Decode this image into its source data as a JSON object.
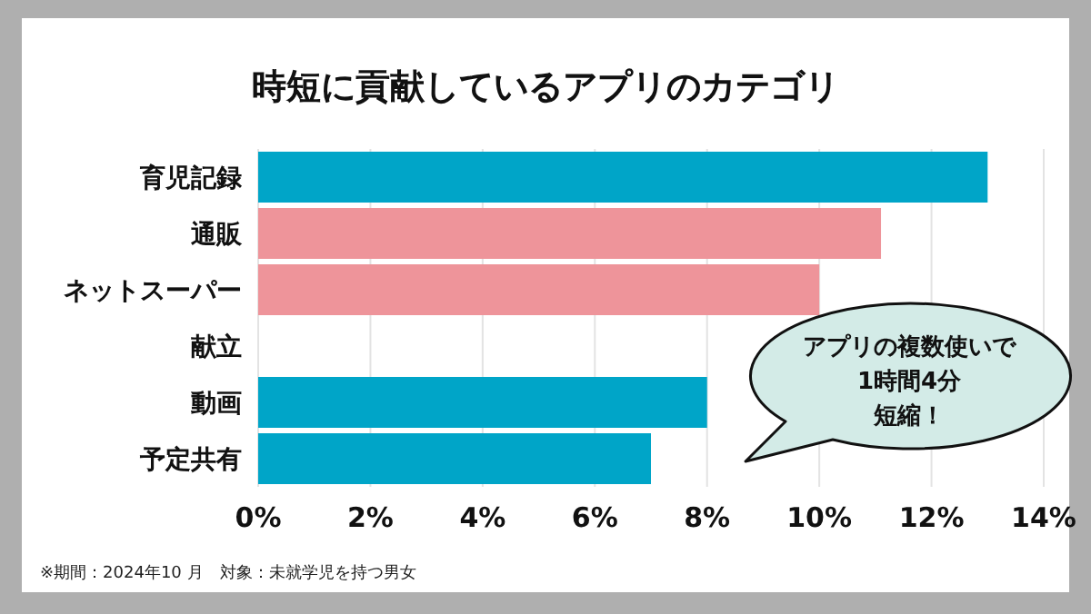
{
  "chart_data": {
    "type": "bar",
    "orientation": "horizontal",
    "title": "時短に貢献しているアプリのカテゴリ",
    "categories": [
      "育児記録",
      "通販",
      "ネットスーパー",
      "献立",
      "動画",
      "予定共有"
    ],
    "values": [
      13,
      11.1,
      10,
      null,
      8,
      7
    ],
    "colors": [
      "#00a5c8",
      "#ee949a",
      "#ee949a",
      null,
      "#00a5c8",
      "#00a5c8"
    ],
    "xlim": [
      0,
      14
    ],
    "xticks": [
      {
        "value": 0,
        "label": "0%"
      },
      {
        "value": 2,
        "label": "2%"
      },
      {
        "value": 4,
        "label": "4%"
      },
      {
        "value": 6,
        "label": "6%"
      },
      {
        "value": 8,
        "label": "8%"
      },
      {
        "value": 10,
        "label": "10%"
      },
      {
        "value": 12,
        "label": "12%"
      },
      {
        "value": 14,
        "label": "14%"
      }
    ],
    "grid": "x",
    "annotations": [
      "アプリの複数使いで",
      "1時間4分",
      "短縮！",
      "※期間：2024年10 月　対象：未就学児を持つ男女"
    ]
  }
}
